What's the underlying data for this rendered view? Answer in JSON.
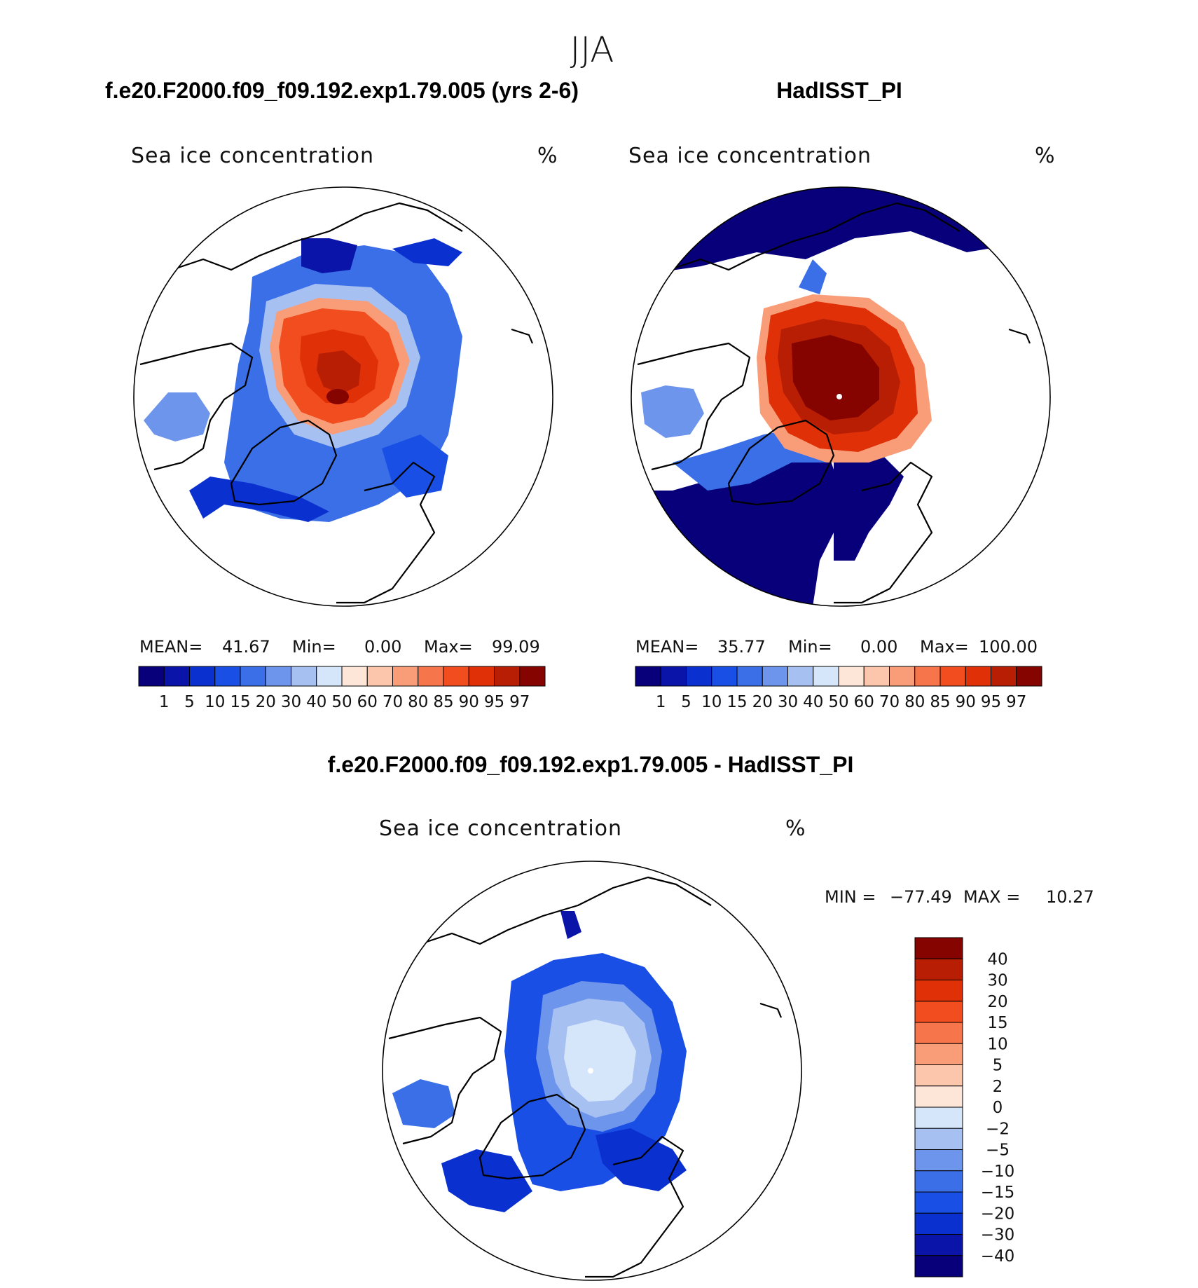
{
  "season": "JJA",
  "panels": {
    "model": {
      "title": "f.e20.F2000.f09_f09.192.exp1.79.005 (yrs 2-6)",
      "subtitle": "Sea ice concentration",
      "units": "%",
      "mean_label": "MEAN=",
      "mean_value": "41.67",
      "min_label": "Min=",
      "min_value": "0.00",
      "max_label": "Max=",
      "max_value": "99.09"
    },
    "obs": {
      "title": "HadISST_PI",
      "subtitle": "Sea ice concentration",
      "units": "%",
      "mean_label": "MEAN=",
      "mean_value": "35.77",
      "min_label": "Min=",
      "min_value": "0.00",
      "max_label": "Max=",
      "max_value": "100.00"
    },
    "diff": {
      "title": "f.e20.F2000.f09_f09.192.exp1.79.005 - HadISST_PI",
      "subtitle": "Sea ice concentration",
      "units": "%",
      "min_label": "MIN =",
      "min_value": "−77.49",
      "max_label": "MAX =",
      "max_value": "10.27"
    }
  },
  "chart_data": [
    {
      "type": "heatmap",
      "projection": "north polar stereographic",
      "title": "f.e20.F2000.f09_f09.192.exp1.79.005 (yrs 2-6)",
      "variable": "Sea ice concentration",
      "units": "%",
      "mean": 41.67,
      "min": 0.0,
      "max": 99.09,
      "colorbar_levels": [
        1,
        5,
        10,
        15,
        20,
        30,
        40,
        50,
        60,
        70,
        80,
        85,
        90,
        95,
        97
      ],
      "colorbar_tick_labels": [
        "1",
        "5",
        "10",
        "15",
        "20",
        "30",
        "40",
        "50",
        "60",
        "70",
        "80",
        "85",
        "90",
        "95",
        "97"
      ]
    },
    {
      "type": "heatmap",
      "projection": "north polar stereographic",
      "title": "HadISST_PI",
      "variable": "Sea ice concentration",
      "units": "%",
      "mean": 35.77,
      "min": 0.0,
      "max": 100.0,
      "colorbar_levels": [
        1,
        5,
        10,
        15,
        20,
        30,
        40,
        50,
        60,
        70,
        80,
        85,
        90,
        95,
        97
      ],
      "colorbar_tick_labels": [
        "1",
        "5",
        "10",
        "15",
        "20",
        "30",
        "40",
        "50",
        "60",
        "70",
        "80",
        "85",
        "90",
        "95",
        "97"
      ]
    },
    {
      "type": "heatmap",
      "projection": "north polar stereographic",
      "title": "f.e20.F2000.f09_f09.192.exp1.79.005 - HadISST_PI",
      "variable": "Sea ice concentration",
      "units": "%",
      "min": -77.49,
      "max": 10.27,
      "colorbar_levels": [
        40,
        30,
        20,
        15,
        10,
        5,
        2,
        0,
        -2,
        -5,
        -10,
        -15,
        -20,
        -30,
        -40
      ],
      "colorbar_tick_labels": [
        "40",
        "30",
        "20",
        "15",
        "10",
        "5",
        "2",
        "0",
        "−2",
        "−5",
        "−10",
        "−15",
        "−20",
        "−30",
        "−40"
      ]
    }
  ],
  "colors": {
    "scale16": [
      "#08007a",
      "#0a14a8",
      "#0b30d0",
      "#1a4fe6",
      "#3a6fe8",
      "#6e95ec",
      "#a6c0f2",
      "#d6e6fa",
      "#fde6d8",
      "#fcc6ac",
      "#f99d78",
      "#f7754a",
      "#f14d1e",
      "#e03008",
      "#b71e04",
      "#850400"
    ],
    "diff_scale": [
      "#850400",
      "#b71e04",
      "#e03008",
      "#f14d1e",
      "#f7754a",
      "#f99d78",
      "#fcc6ac",
      "#fde6d8",
      "#d6e6fa",
      "#a6c0f2",
      "#6e95ec",
      "#3a6fe8",
      "#1a4fe6",
      "#0b30d0",
      "#0a14a8",
      "#08007a"
    ]
  }
}
